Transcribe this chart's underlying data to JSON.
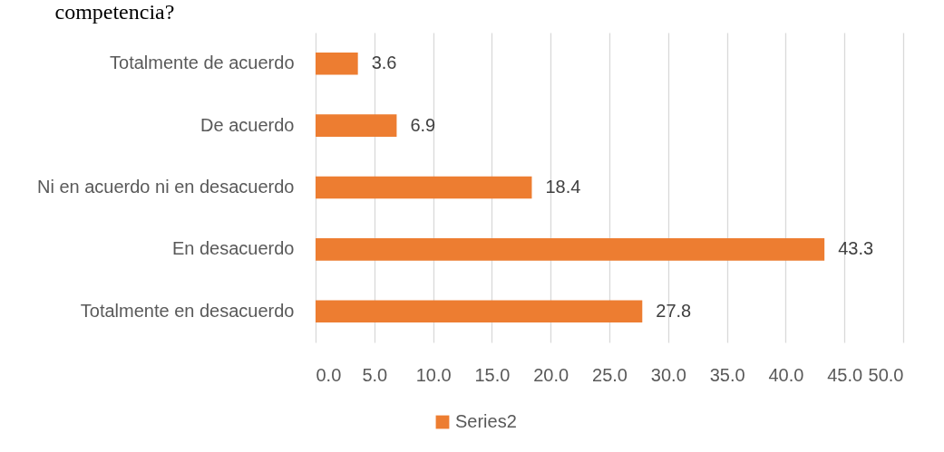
{
  "chart_data": {
    "type": "bar",
    "orientation": "horizontal",
    "title": "competencia?",
    "categories": [
      "Totalmente de acuerdo",
      "De acuerdo",
      "Ni en acuerdo ni en desacuerdo",
      "En desacuerdo",
      "Totalmente en desacuerdo"
    ],
    "series": [
      {
        "name": "Series2",
        "color": "#ed7d31",
        "values": [
          3.6,
          6.9,
          18.4,
          43.3,
          27.8
        ]
      }
    ],
    "xlim": [
      0,
      50
    ],
    "xticks": [
      {
        "value": 0,
        "label": "0.0"
      },
      {
        "value": 5,
        "label": "5.0"
      },
      {
        "value": 10,
        "label": "10.0"
      },
      {
        "value": 15,
        "label": "15.0"
      },
      {
        "value": 20,
        "label": "20.0"
      },
      {
        "value": 25,
        "label": "25.0"
      },
      {
        "value": 30,
        "label": "30.0"
      },
      {
        "value": 35,
        "label": "35.0"
      },
      {
        "value": 40,
        "label": "40.0"
      },
      {
        "value": 45,
        "label": "45.0"
      },
      {
        "value": 50,
        "label": "50.0"
      }
    ],
    "grid": "x",
    "legend": "bottom",
    "data_labels": true
  }
}
